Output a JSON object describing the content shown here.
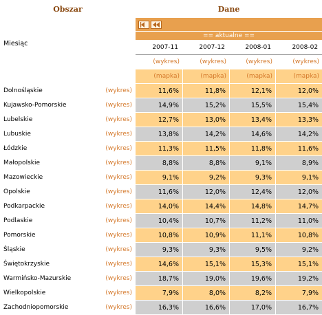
{
  "header": {
    "obszar": "Obszar",
    "dane": "Dane"
  },
  "aktualne": "== aktualne ==",
  "miesiac_label": "Miesiąc",
  "periods": [
    "2007-11",
    "2007-12",
    "2008-01",
    "2008-02"
  ],
  "wykres_label": "(wykres)",
  "mapka_label": "(mapka)",
  "rows": [
    {
      "region": "Dolnośląskie",
      "link": "(wykres)",
      "values": [
        "11,6%",
        "11,8%",
        "12,1%",
        "12,0%"
      ]
    },
    {
      "region": "Kujawsko-Pomorskie",
      "link": "(wykres)",
      "values": [
        "14,9%",
        "15,2%",
        "15,5%",
        "15,4%"
      ]
    },
    {
      "region": "Lubelskie",
      "link": "(wykres)",
      "values": [
        "12,7%",
        "13,0%",
        "13,4%",
        "13,3%"
      ]
    },
    {
      "region": "Lubuskie",
      "link": "(wykres)",
      "values": [
        "13,8%",
        "14,2%",
        "14,6%",
        "14,2%"
      ]
    },
    {
      "region": "Łódzkie",
      "link": "(wykres)",
      "values": [
        "11,3%",
        "11,5%",
        "11,8%",
        "11,6%"
      ]
    },
    {
      "region": "Małopolskie",
      "link": "(wykres)",
      "values": [
        "8,8%",
        "8,8%",
        "9,1%",
        "8,9%"
      ]
    },
    {
      "region": "Mazowieckie",
      "link": "(wykres)",
      "values": [
        "9,1%",
        "9,2%",
        "9,3%",
        "9,1%"
      ]
    },
    {
      "region": "Opolskie",
      "link": "(wykres)",
      "values": [
        "11,6%",
        "12,0%",
        "12,4%",
        "12,0%"
      ]
    },
    {
      "region": "Podkarpackie",
      "link": "(wykres)",
      "values": [
        "14,0%",
        "14,4%",
        "14,8%",
        "14,7%"
      ]
    },
    {
      "region": "Podlaskie",
      "link": "(wykres)",
      "values": [
        "10,4%",
        "10,7%",
        "11,2%",
        "11,0%"
      ]
    },
    {
      "region": "Pomorskie",
      "link": "(wykres)",
      "values": [
        "10,8%",
        "10,9%",
        "11,1%",
        "10,8%"
      ]
    },
    {
      "region": "Śląskie",
      "link": "(wykres)",
      "values": [
        "9,3%",
        "9,3%",
        "9,5%",
        "9,2%"
      ]
    },
    {
      "region": "Świętokrzyskie",
      "link": "(wykres)",
      "values": [
        "14,6%",
        "15,1%",
        "15,3%",
        "15,1%"
      ]
    },
    {
      "region": "Warmińsko-Mazurskie",
      "link": "(wykres)",
      "values": [
        "18,7%",
        "19,0%",
        "19,6%",
        "19,2%"
      ]
    },
    {
      "region": "Wielkopolskie",
      "link": "(wykres)",
      "values": [
        "7,9%",
        "8,0%",
        "8,2%",
        "7,9%"
      ]
    },
    {
      "region": "Zachodniopomorskie",
      "link": "(wykres)",
      "values": [
        "16,3%",
        "16,6%",
        "17,0%",
        "16,7%"
      ]
    }
  ],
  "colors": {
    "orange": "#ffd28a",
    "gray": "#cfcfcf",
    "accent": "#e8a04e",
    "link": "#d4782a",
    "title": "#8a4a12"
  },
  "icons": [
    "first-page-icon",
    "previous-page-icon"
  ]
}
